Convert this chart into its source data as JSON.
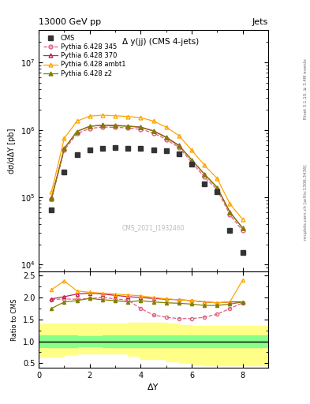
{
  "title_top": "13000 GeV pp",
  "title_right": "Jets",
  "plot_title": "Δ y(jj) (CMS 4-jets)",
  "xlabel": "ΔY",
  "ylabel_main": "dσ/dΔY [pb]",
  "ylabel_ratio": "Ratio to CMS",
  "right_label_top": "Rivet 3.1.10, ≥ 3.4M events",
  "right_label_bottom": "mcplots.cern.ch [arXiv:1306.3436]",
  "watermark": "CMS_2021_I1932460",
  "x_cms": [
    0.5,
    1.0,
    1.5,
    2.0,
    2.5,
    3.0,
    3.5,
    4.0,
    4.5,
    5.0,
    5.5,
    6.0,
    6.5,
    7.0,
    7.5,
    8.0
  ],
  "y_cms": [
    65000.0,
    240000.0,
    430000.0,
    510000.0,
    530000.0,
    540000.0,
    530000.0,
    530000.0,
    510000.0,
    490000.0,
    440000.0,
    310000.0,
    160000.0,
    120000.0,
    32000.0,
    15000.0
  ],
  "x_py345": [
    0.5,
    1.0,
    1.5,
    2.0,
    2.5,
    3.0,
    3.5,
    4.0,
    4.5,
    5.0,
    5.5,
    6.0,
    6.5,
    7.0,
    7.5,
    8.0
  ],
  "y_py345": [
    95000.0,
    500000.0,
    880000.0,
    1050000.0,
    1100000.0,
    1090000.0,
    1070000.0,
    1020000.0,
    900000.0,
    720000.0,
    550000.0,
    330000.0,
    200000.0,
    130000.0,
    55000.0,
    32000.0
  ],
  "x_py370": [
    0.5,
    1.0,
    1.5,
    2.0,
    2.5,
    3.0,
    3.5,
    4.0,
    4.5,
    5.0,
    5.5,
    6.0,
    6.5,
    7.0,
    7.5,
    8.0
  ],
  "y_py370": [
    98000.0,
    530000.0,
    950000.0,
    1130000.0,
    1180000.0,
    1170000.0,
    1140000.0,
    1100000.0,
    970000.0,
    780000.0,
    590000.0,
    360000.0,
    220000.0,
    140000.0,
    60000.0,
    35000.0
  ],
  "x_pyambt1": [
    0.5,
    1.0,
    1.5,
    2.0,
    2.5,
    3.0,
    3.5,
    4.0,
    4.5,
    5.0,
    5.5,
    6.0,
    6.5,
    7.0,
    7.5,
    8.0
  ],
  "y_pyambt1": [
    120000.0,
    750000.0,
    1350000.0,
    1600000.0,
    1650000.0,
    1620000.0,
    1580000.0,
    1520000.0,
    1350000.0,
    1100000.0,
    820000.0,
    500000.0,
    300000.0,
    190000.0,
    80000.0,
    47000.0
  ],
  "x_pyz2": [
    0.5,
    1.0,
    1.5,
    2.0,
    2.5,
    3.0,
    3.5,
    4.0,
    4.5,
    5.0,
    5.5,
    6.0,
    6.5,
    7.0,
    7.5,
    8.0
  ],
  "y_pyz2": [
    95000.0,
    530000.0,
    950000.0,
    1130000.0,
    1170000.0,
    1150000.0,
    1130000.0,
    1090000.0,
    960000.0,
    770000.0,
    580000.0,
    360000.0,
    220000.0,
    140000.0,
    60000.0,
    35000.0
  ],
  "color_cms": "#333333",
  "color_py345": "#e06080",
  "color_py370": "#c02050",
  "color_pyambt1": "#ffa500",
  "color_pyz2": "#808000",
  "ratio_x": [
    0.5,
    1.0,
    1.5,
    2.0,
    2.5,
    3.0,
    3.5,
    4.0,
    4.5,
    5.0,
    5.5,
    6.0,
    6.5,
    7.0,
    7.5,
    8.0
  ],
  "ratio_py345": [
    1.95,
    1.97,
    1.96,
    1.98,
    2.0,
    1.97,
    1.94,
    1.75,
    1.6,
    1.55,
    1.52,
    1.52,
    1.55,
    1.62,
    1.75,
    1.88
  ],
  "ratio_py370": [
    1.97,
    2.02,
    2.08,
    2.1,
    2.08,
    2.05,
    2.02,
    2.0,
    1.98,
    1.96,
    1.95,
    1.93,
    1.9,
    1.88,
    1.9,
    1.9
  ],
  "ratio_pyambt1": [
    2.18,
    2.38,
    2.15,
    2.12,
    2.1,
    2.08,
    2.06,
    2.04,
    2.0,
    1.97,
    1.95,
    1.93,
    1.9,
    1.88,
    1.9,
    2.4
  ],
  "ratio_pyz2": [
    1.75,
    1.9,
    1.93,
    1.98,
    1.95,
    1.93,
    1.9,
    1.93,
    1.9,
    1.88,
    1.87,
    1.85,
    1.82,
    1.82,
    1.85,
    1.9
  ],
  "band_x": [
    0.0,
    0.5,
    1.0,
    1.5,
    2.0,
    2.5,
    3.0,
    3.5,
    4.0,
    4.5,
    5.0,
    5.5,
    6.0,
    6.5,
    7.0,
    7.5,
    8.0,
    8.5,
    9.0
  ],
  "band_green_lo": [
    0.87,
    0.87,
    0.87,
    0.88,
    0.88,
    0.87,
    0.87,
    0.87,
    0.87,
    0.87,
    0.87,
    0.87,
    0.87,
    0.87,
    0.87,
    0.87,
    0.87,
    0.87,
    0.87
  ],
  "band_green_hi": [
    1.13,
    1.13,
    1.13,
    1.12,
    1.12,
    1.13,
    1.13,
    1.13,
    1.13,
    1.13,
    1.13,
    1.13,
    1.13,
    1.13,
    1.13,
    1.13,
    1.13,
    1.13,
    1.13
  ],
  "band_yellow_lo": [
    0.65,
    0.65,
    0.7,
    0.72,
    0.72,
    0.72,
    0.72,
    0.67,
    0.6,
    0.6,
    0.55,
    0.5,
    0.47,
    0.45,
    0.45,
    0.45,
    0.45,
    0.45,
    0.45
  ],
  "band_yellow_hi": [
    1.4,
    1.4,
    1.4,
    1.4,
    1.4,
    1.4,
    1.4,
    1.42,
    1.42,
    1.42,
    1.4,
    1.38,
    1.35,
    1.35,
    1.35,
    1.35,
    1.35,
    1.35,
    1.35
  ],
  "xlim": [
    0,
    9
  ],
  "ylim_main": [
    8000,
    30000000.0
  ],
  "ylim_ratio": [
    0.4,
    2.6
  ]
}
